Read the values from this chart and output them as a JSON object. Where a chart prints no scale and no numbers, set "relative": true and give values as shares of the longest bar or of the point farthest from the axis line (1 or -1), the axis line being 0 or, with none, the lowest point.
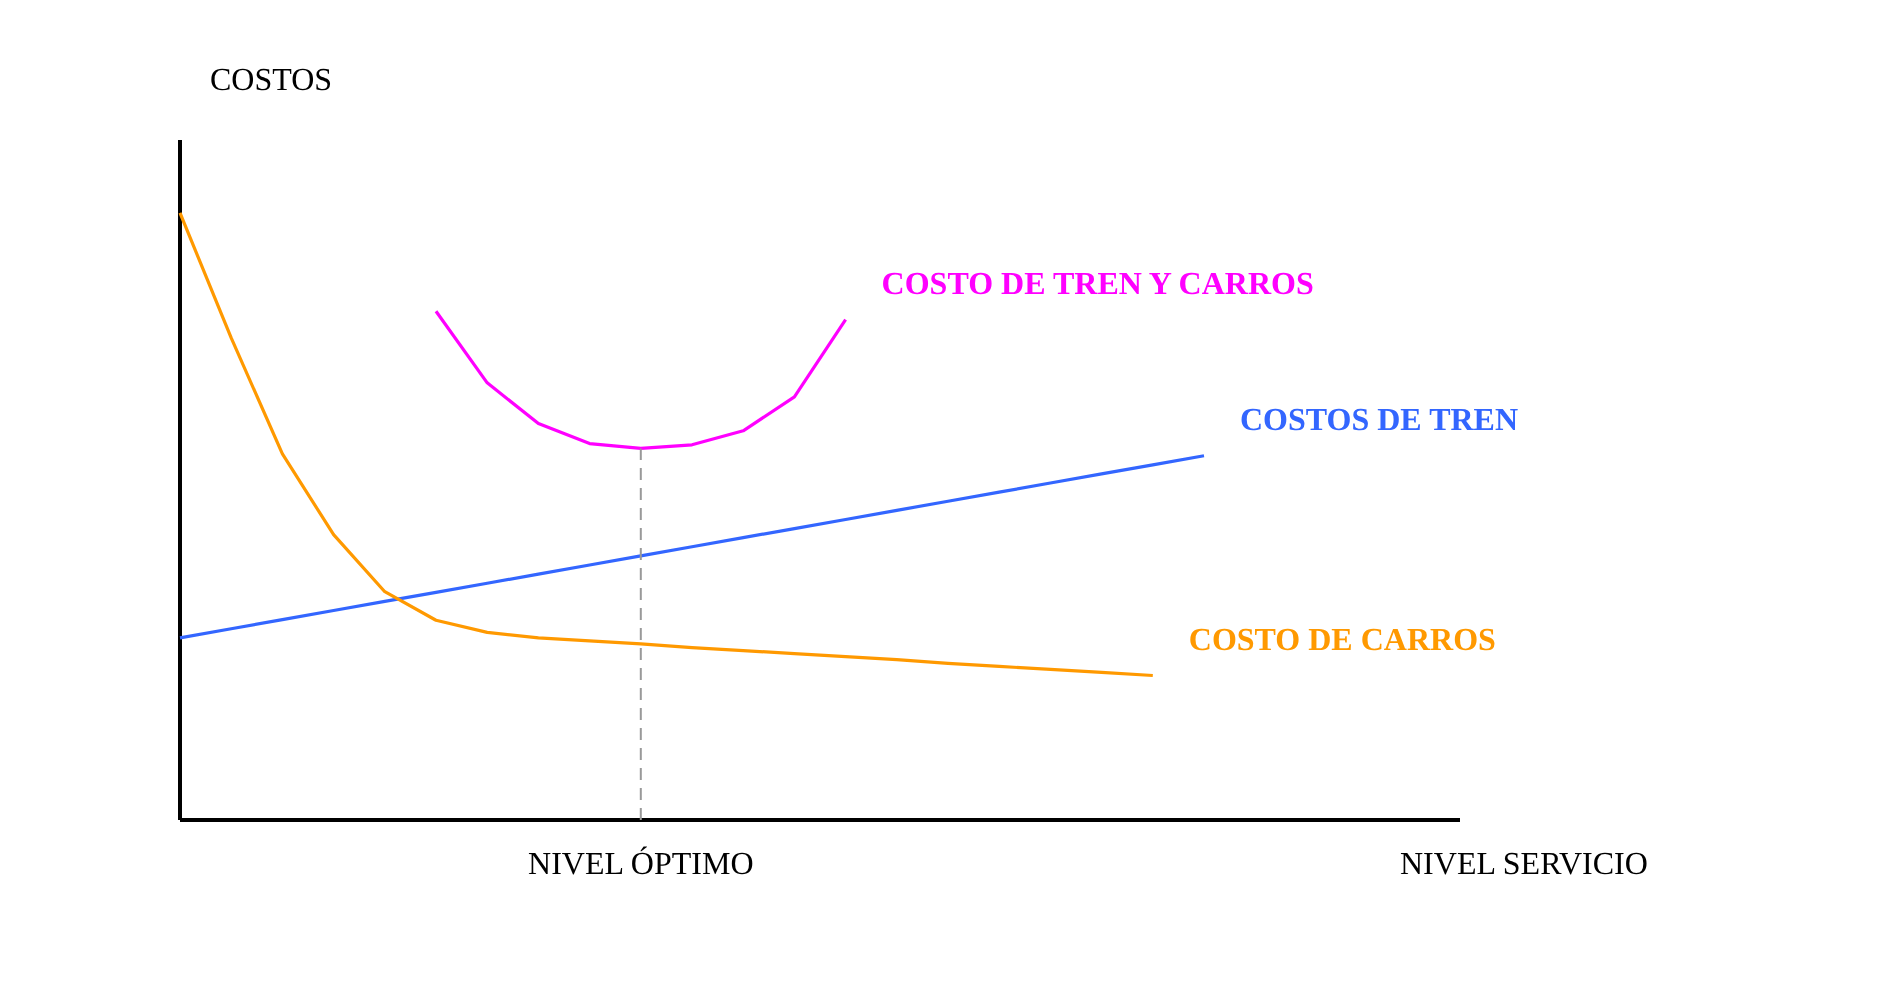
{
  "chart_data": {
    "type": "line",
    "relative": true,
    "xlabel": "NIVEL SERVICIO",
    "ylabel": "COSTOS",
    "categories": [
      null,
      null,
      null,
      null,
      null,
      null,
      null,
      null,
      null,
      null,
      null,
      null,
      null,
      null,
      null,
      null,
      null,
      null,
      null,
      null,
      null,
      null,
      null,
      null,
      null,
      null
    ],
    "series": [
      {
        "name": "COSTO DE TREN Y CARROS",
        "color": "#ff00ff",
        "values": [
          null,
          null,
          null,
          null,
          null,
          0.838,
          0.72,
          0.653,
          0.62,
          0.612,
          0.618,
          0.641,
          0.697,
          0.824,
          null,
          null,
          null,
          null,
          null,
          null,
          null,
          null,
          null,
          null,
          null,
          null
        ]
      },
      {
        "name": "COSTOS DE TREN",
        "color": "#3366ff",
        "values": [
          0.3,
          0.315,
          0.33,
          0.345,
          0.36,
          0.375,
          0.39,
          0.405,
          0.42,
          0.435,
          0.45,
          0.465,
          0.48,
          0.495,
          0.51,
          0.525,
          0.54,
          0.555,
          0.57,
          0.585,
          0.6,
          null,
          null,
          null,
          null,
          null
        ]
      },
      {
        "name": "COSTO DE CARROS",
        "color": "#ff9900",
        "values": [
          1.0,
          0.794,
          0.603,
          0.47,
          0.376,
          0.329,
          0.309,
          0.3,
          0.295,
          0.29,
          0.284,
          0.279,
          0.274,
          0.269,
          0.264,
          0.258,
          0.253,
          0.248,
          0.243,
          0.238,
          null,
          null,
          null,
          null,
          null,
          null
        ]
      }
    ],
    "annotations": [
      "NIVEL ÓPTIMO"
    ],
    "line_style": "solid",
    "marker": "none",
    "grid": false
  }
}
